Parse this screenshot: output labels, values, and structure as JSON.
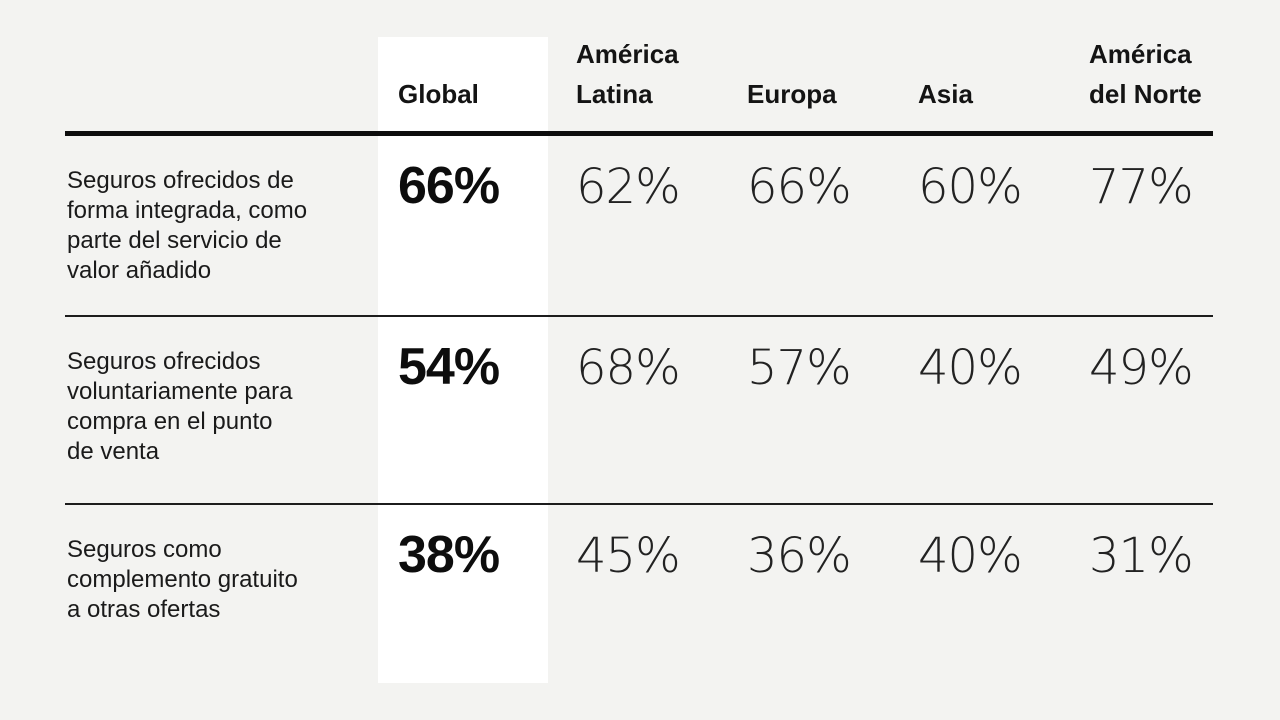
{
  "colors": {
    "background": "#f3f3f1",
    "highlight_column": "#ffffff",
    "thick_rule": "#0d0d0d",
    "thin_rule": "#1c1c1c",
    "text": "#141414"
  },
  "table": {
    "headers": {
      "global": "Global",
      "america_latina": "América\nLatina",
      "europa": "Europa",
      "asia": "Asia",
      "america_del_norte": "América\ndel Norte"
    },
    "rows": [
      {
        "label": "Seguros ofrecidos de\nforma integrada, como\nparte del servicio de\nvalor añadido",
        "global": "66%",
        "america_latina": "62%",
        "europa": "66%",
        "asia": "60%",
        "america_del_norte": "77%"
      },
      {
        "label": "Seguros ofrecidos\nvoluntariamente para\ncompra en el punto\nde venta",
        "global": "54%",
        "america_latina": "68%",
        "europa": "57%",
        "asia": "40%",
        "america_del_norte": "49%"
      },
      {
        "label": "Seguros como\ncomplemento gratuito\na otras ofertas",
        "global": "38%",
        "america_latina": "45%",
        "europa": "36%",
        "asia": "40%",
        "america_del_norte": "31%"
      }
    ]
  },
  "chart_data": {
    "type": "table",
    "title": "",
    "unit": "%",
    "columns": [
      "Global",
      "América Latina",
      "Europa",
      "Asia",
      "América del Norte"
    ],
    "rows": [
      {
        "label": "Seguros ofrecidos de forma integrada, como parte del servicio de valor añadido",
        "values": [
          66,
          62,
          66,
          60,
          77
        ]
      },
      {
        "label": "Seguros ofrecidos voluntariamente para compra en el punto de venta",
        "values": [
          54,
          68,
          57,
          40,
          49
        ]
      },
      {
        "label": "Seguros como complemento gratuito a otras ofertas",
        "values": [
          38,
          45,
          36,
          40,
          31
        ]
      }
    ],
    "layout": {
      "highlighted_column": "Global",
      "header_rule": true,
      "row_separators": true
    }
  }
}
